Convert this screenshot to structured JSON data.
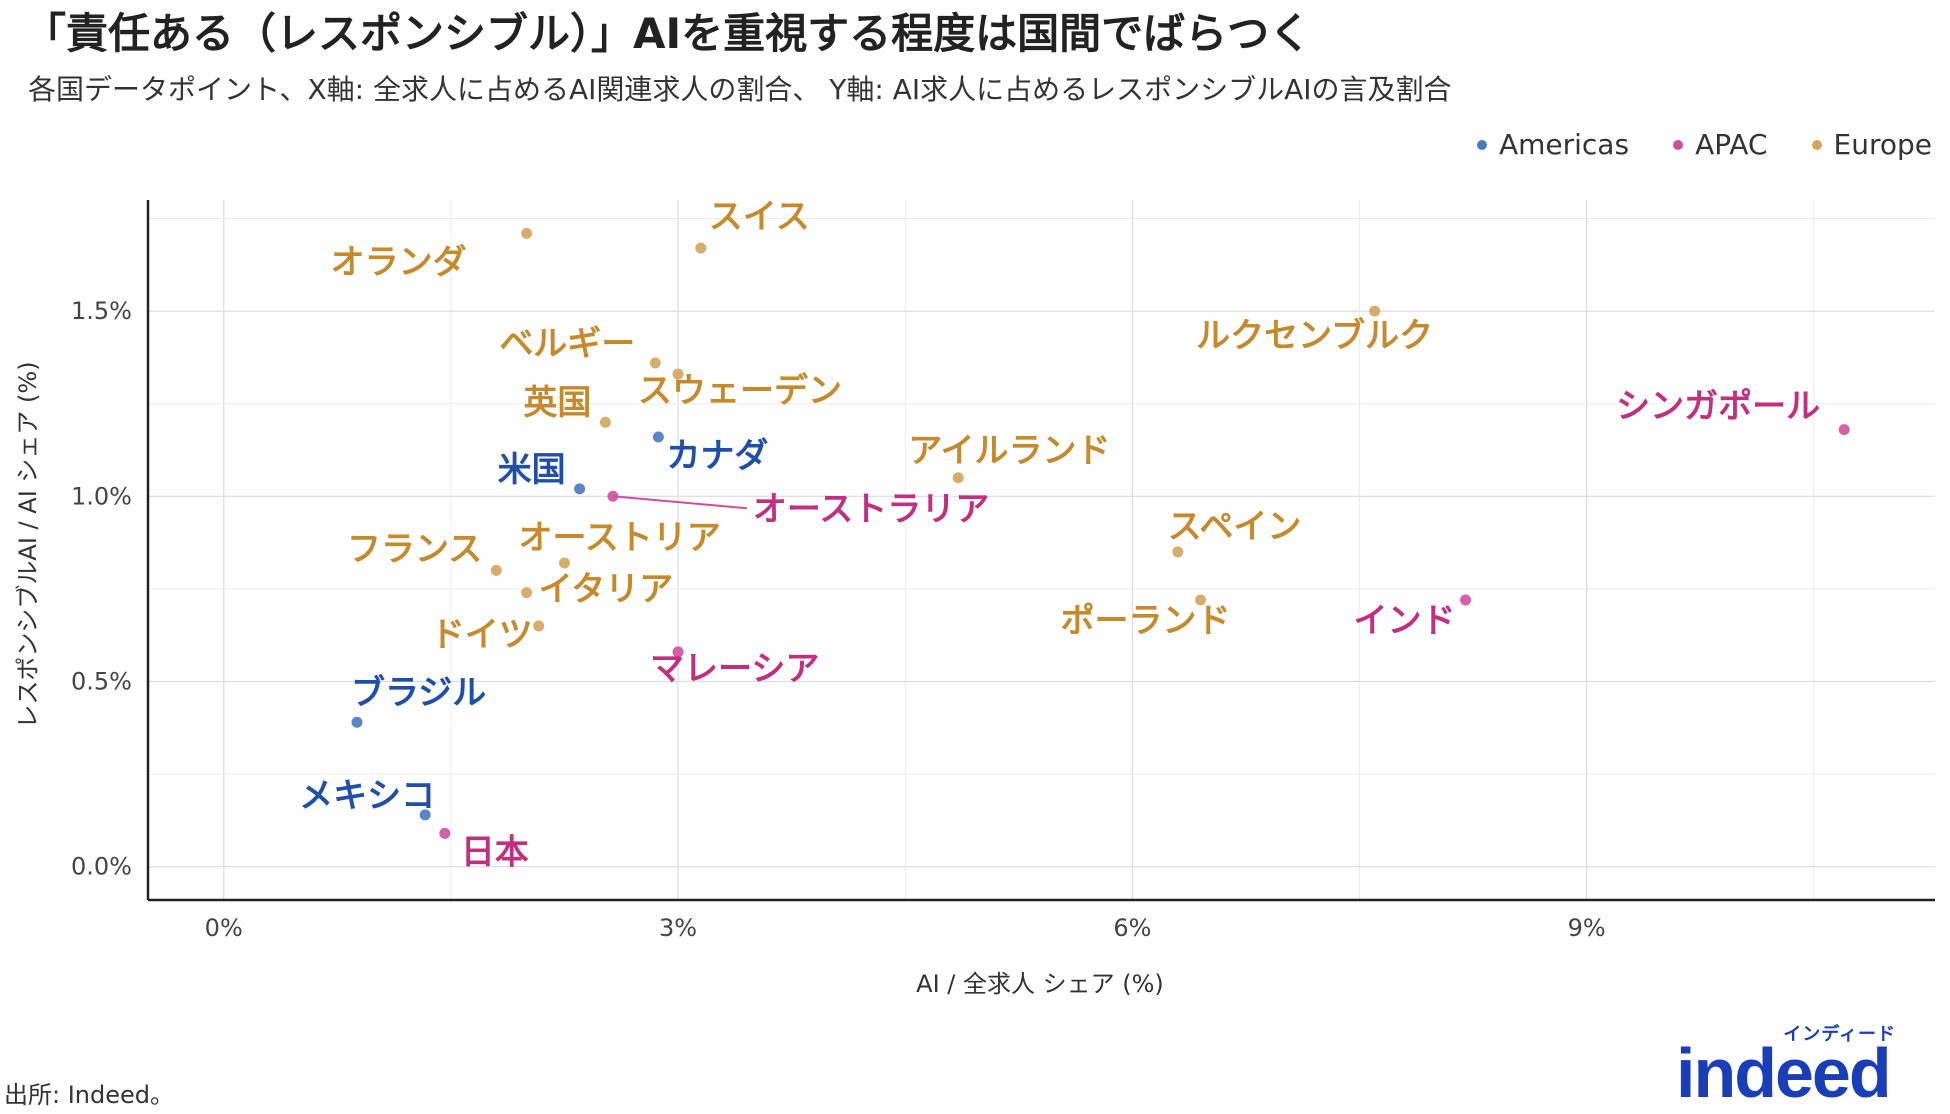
{
  "title": "「責任ある（レスポンシブル）」AIを重視する程度は国間でばらつく",
  "subtitle": "各国データポイント、X軸: 全求人に占めるAI関連求人の割合、 Y軸: AI求人に占めるレスポンシブルAIの言及割合",
  "source": "出所: Indeed。",
  "logo": {
    "word": "indeed",
    "kana": "インディード"
  },
  "colors": {
    "Americas": "#4a78c2",
    "APAC": "#cf4f9c",
    "Europe": "#d4a45c",
    "label_Americas": "#1f4fa8",
    "label_APAC": "#c0307f",
    "label_Europe": "#c48a2c"
  },
  "chart_data": {
    "type": "scatter",
    "xlabel": "AI / 全求人 シェア (%)",
    "ylabel": "レスポンシブルAI / AI シェア (%)",
    "xlim": [
      -0.5,
      11.3
    ],
    "ylim": [
      -0.09,
      1.8
    ],
    "x_ticks": [
      0,
      3,
      6,
      9
    ],
    "x_tick_labels": [
      "0%",
      "3%",
      "6%",
      "9%"
    ],
    "y_ticks": [
      0.0,
      0.5,
      1.0,
      1.5
    ],
    "y_tick_labels": [
      "0.0%",
      "0.5%",
      "1.0%",
      "1.5%"
    ],
    "grid": true,
    "legend": {
      "placement": "top-right",
      "entries": [
        "Americas",
        "APAC",
        "Europe"
      ]
    },
    "points": [
      {
        "label": "オランダ",
        "region": "Europe",
        "x": 2.0,
        "y": 1.71
      },
      {
        "label": "スイス",
        "region": "Europe",
        "x": 3.15,
        "y": 1.67
      },
      {
        "label": "ルクセンブルク",
        "region": "Europe",
        "x": 7.6,
        "y": 1.5
      },
      {
        "label": "ベルギー",
        "region": "Europe",
        "x": 2.85,
        "y": 1.36
      },
      {
        "label": "スウェーデン",
        "region": "Europe",
        "x": 3.0,
        "y": 1.33
      },
      {
        "label": "英国",
        "region": "Europe",
        "x": 2.52,
        "y": 1.2
      },
      {
        "label": "シンガポール",
        "region": "APAC",
        "x": 10.7,
        "y": 1.18
      },
      {
        "label": "カナダ",
        "region": "Americas",
        "x": 2.87,
        "y": 1.16
      },
      {
        "label": "アイルランド",
        "region": "Europe",
        "x": 4.85,
        "y": 1.05
      },
      {
        "label": "米国",
        "region": "Americas",
        "x": 2.35,
        "y": 1.02
      },
      {
        "label": "オーストラリア",
        "region": "APAC",
        "x": 2.57,
        "y": 1.0
      },
      {
        "label": "スペイン",
        "region": "Europe",
        "x": 6.3,
        "y": 0.85
      },
      {
        "label": "オーストリア",
        "region": "Europe",
        "x": 2.25,
        "y": 0.82
      },
      {
        "label": "フランス",
        "region": "Europe",
        "x": 1.8,
        "y": 0.8
      },
      {
        "label": "イタリア",
        "region": "Europe",
        "x": 2.0,
        "y": 0.74
      },
      {
        "label": "ポーランド",
        "region": "Europe",
        "x": 6.45,
        "y": 0.72
      },
      {
        "label": "インド",
        "region": "APAC",
        "x": 8.2,
        "y": 0.72
      },
      {
        "label": "ドイツ",
        "region": "Europe",
        "x": 2.08,
        "y": 0.65
      },
      {
        "label": "マレーシア",
        "region": "APAC",
        "x": 3.0,
        "y": 0.58
      },
      {
        "label": "ブラジル",
        "region": "Americas",
        "x": 0.88,
        "y": 0.39
      },
      {
        "label": "メキシコ",
        "region": "Americas",
        "x": 1.33,
        "y": 0.14
      },
      {
        "label": "日本",
        "region": "APAC",
        "x": 1.46,
        "y": 0.09
      }
    ]
  }
}
